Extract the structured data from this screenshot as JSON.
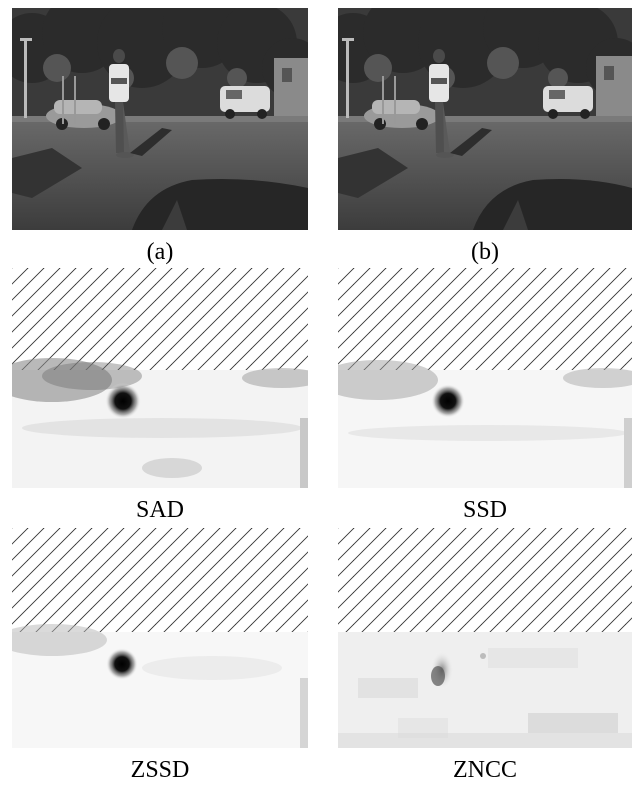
{
  "figure": {
    "panels": [
      {
        "id": "a",
        "caption": "(a)",
        "content": "left-camera-photo"
      },
      {
        "id": "b",
        "caption": "(b)",
        "content": "right-camera-photo"
      },
      {
        "id": "sad",
        "caption": "SAD",
        "content": "hatched-mask-and-cost-map"
      },
      {
        "id": "ssd",
        "caption": "SSD",
        "content": "hatched-mask-and-cost-map"
      },
      {
        "id": "zssd",
        "caption": "ZSSD",
        "content": "hatched-mask-and-cost-map"
      },
      {
        "id": "zncc",
        "caption": "ZNCC",
        "content": "hatched-mask-and-cost-map"
      }
    ]
  }
}
